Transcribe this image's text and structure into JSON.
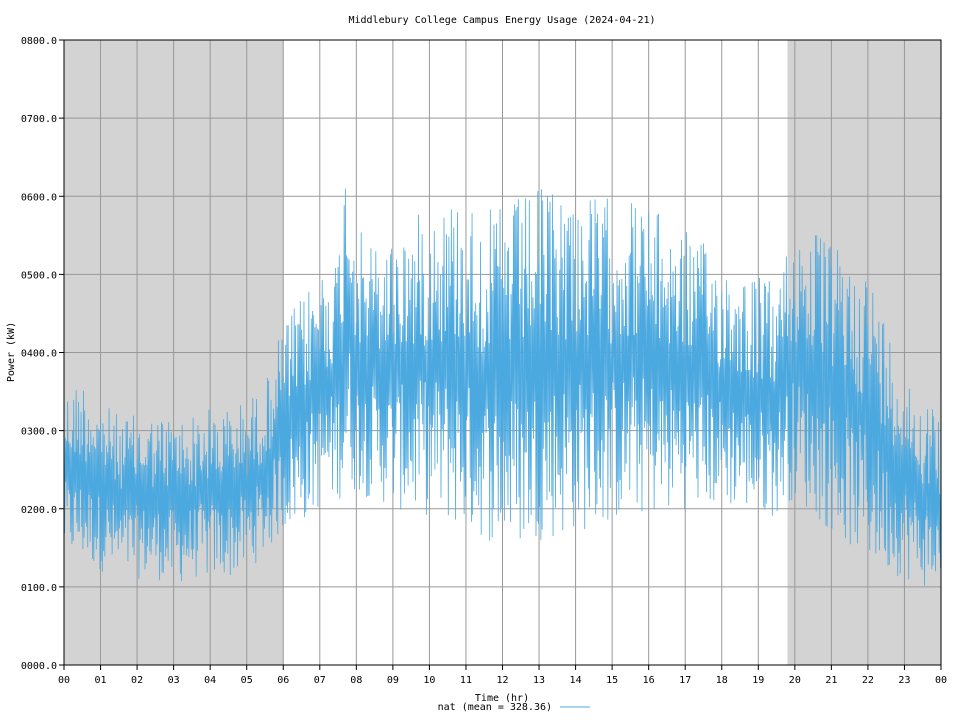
{
  "chart_data": {
    "type": "line",
    "title": "Middlebury College Campus Energy Usage (2024-04-21)",
    "xlabel": "Time (hr)",
    "ylabel": "Power (kW)",
    "xlim": [
      0,
      24
    ],
    "ylim": [
      0,
      800
    ],
    "grid": true,
    "legend_position": "bottom-center",
    "x_ticks": [
      "00",
      "01",
      "02",
      "03",
      "04",
      "05",
      "06",
      "07",
      "08",
      "09",
      "10",
      "11",
      "12",
      "13",
      "14",
      "15",
      "16",
      "17",
      "18",
      "19",
      "20",
      "21",
      "22",
      "23",
      "00"
    ],
    "y_ticks": [
      "0000.0",
      "0100.0",
      "0200.0",
      "0300.0",
      "0400.0",
      "0500.0",
      "0600.0",
      "0700.0",
      "0800.0"
    ],
    "shaded_regions": [
      [
        0,
        6
      ],
      [
        19.8,
        24
      ]
    ],
    "shade_color": "#d3d3d3",
    "series": [
      {
        "name": "nat",
        "legend_label": "nat (mean = 328.36)",
        "color": "#4ca9e0",
        "x": [
          0.0,
          0.5,
          1.0,
          1.5,
          2.0,
          2.5,
          3.0,
          3.5,
          4.0,
          4.5,
          5.0,
          5.5,
          6.0,
          6.5,
          7.0,
          7.5,
          7.75,
          8.0,
          8.5,
          9.0,
          9.5,
          10.0,
          10.5,
          11.0,
          11.5,
          12.0,
          12.5,
          13.0,
          13.5,
          14.0,
          14.5,
          15.0,
          15.5,
          16.0,
          16.5,
          17.0,
          17.5,
          18.0,
          18.5,
          19.0,
          19.5,
          19.8,
          20.0,
          20.5,
          21.0,
          21.5,
          22.0,
          22.5,
          23.0,
          23.5,
          24.0
        ],
        "y_low": [
          140,
          130,
          120,
          110,
          110,
          110,
          100,
          110,
          110,
          110,
          120,
          140,
          170,
          180,
          200,
          210,
          220,
          220,
          210,
          200,
          190,
          190,
          180,
          170,
          160,
          150,
          150,
          160,
          160,
          170,
          170,
          180,
          190,
          190,
          190,
          200,
          200,
          200,
          200,
          190,
          190,
          210,
          210,
          190,
          170,
          150,
          130,
          120,
          110,
          100,
          90
        ],
        "y_high": [
          350,
          370,
          340,
          320,
          320,
          320,
          320,
          320,
          330,
          330,
          340,
          360,
          440,
          470,
          510,
          530,
          680,
          560,
          540,
          550,
          570,
          590,
          600,
          600,
          580,
          590,
          600,
          610,
          620,
          610,
          600,
          600,
          600,
          590,
          570,
          560,
          540,
          520,
          510,
          500,
          490,
          540,
          560,
          560,
          540,
          520,
          510,
          440,
          380,
          340,
          320
        ]
      }
    ]
  }
}
